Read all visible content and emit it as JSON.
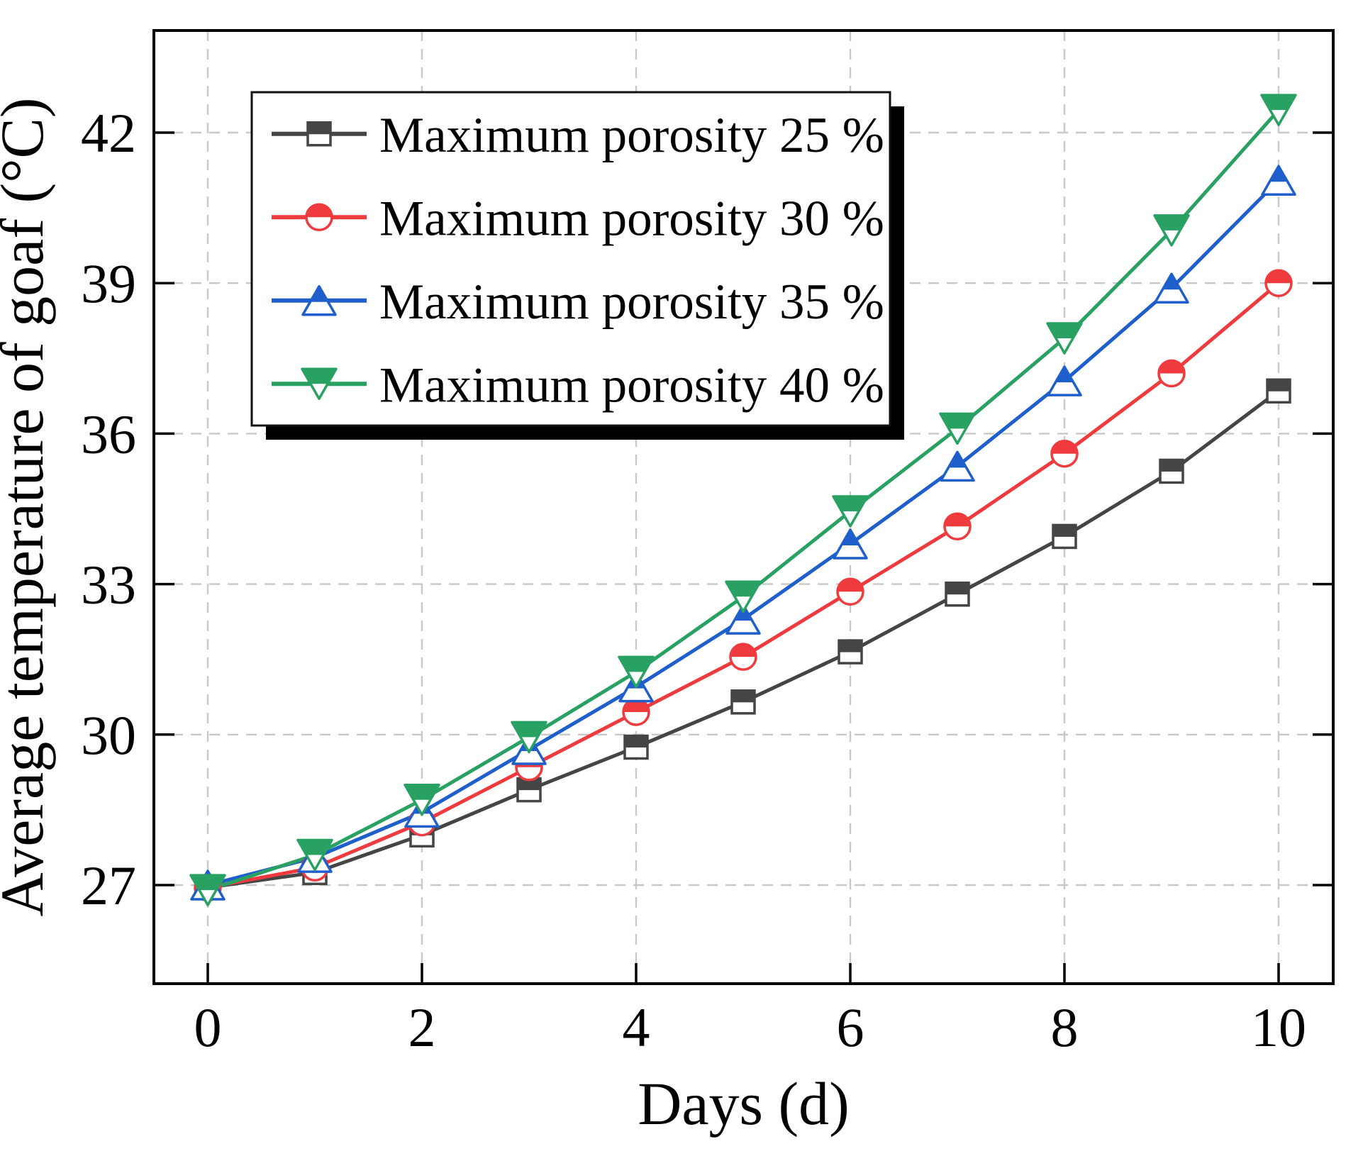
{
  "chart_data": {
    "type": "line",
    "x": [
      0,
      1,
      2,
      3,
      4,
      5,
      6,
      7,
      8,
      9,
      10
    ],
    "xlabel": "Days (d)",
    "ylabel": "Average temperature of goaf (°C)",
    "xlim": [
      -0.5,
      10.5
    ],
    "ylim": [
      25,
      44
    ],
    "xticks": [
      0,
      2,
      4,
      6,
      8,
      10
    ],
    "yticks": [
      27,
      30,
      33,
      36,
      39,
      42
    ],
    "grid": "major-both-dashed",
    "grid_color": "#c8c8c8",
    "axis_color": "#000000",
    "legend_position": "upper-left-inside-shadowbox",
    "series": [
      {
        "name": "Maximum porosity 25 %",
        "color": "#454545",
        "marker": "half-filled-square",
        "values": [
          26.95,
          27.25,
          28.0,
          28.9,
          29.75,
          30.65,
          31.65,
          32.8,
          33.95,
          35.25,
          36.85
        ]
      },
      {
        "name": "Maximum porosity 30 %",
        "color": "#ef3a3e",
        "marker": "half-filled-circle",
        "values": [
          26.95,
          27.35,
          28.25,
          29.35,
          30.45,
          31.55,
          32.85,
          34.15,
          35.6,
          37.2,
          39.0
        ]
      },
      {
        "name": "Maximum porosity 35 %",
        "color": "#1f5fcb",
        "marker": "half-filled-triangle-up",
        "values": [
          27.0,
          27.55,
          28.45,
          29.7,
          30.95,
          32.3,
          33.8,
          35.35,
          37.05,
          38.9,
          41.05
        ]
      },
      {
        "name": "Maximum porosity 40 %",
        "color": "#28a163",
        "marker": "half-filled-triangle-down",
        "values": [
          26.9,
          27.6,
          28.7,
          29.95,
          31.25,
          32.75,
          34.45,
          36.1,
          37.9,
          40.05,
          42.45
        ]
      }
    ]
  }
}
